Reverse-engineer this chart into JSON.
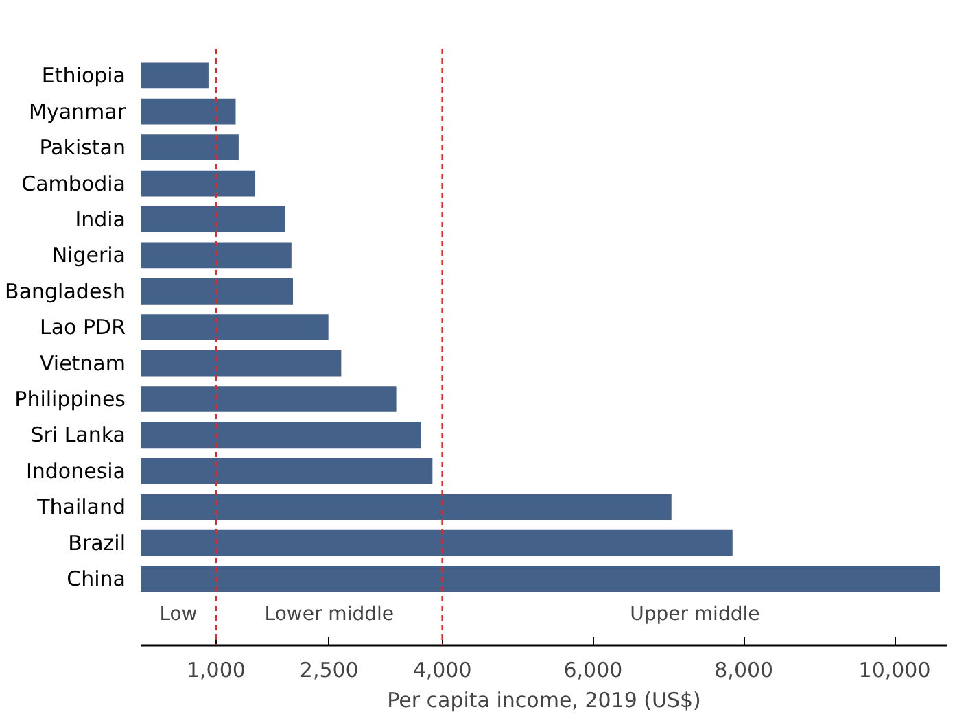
{
  "chart_data": {
    "type": "bar",
    "orientation": "horizontal",
    "categories": [
      "Ethiopia",
      "Myanmar",
      "Pakistan",
      "Cambodia",
      "India",
      "Nigeria",
      "Bangladesh",
      "Lao PDR",
      "Vietnam",
      "Philippines",
      "Sri Lanka",
      "Indonesia",
      "Thailand",
      "Brazil",
      "China"
    ],
    "values": [
      900,
      1260,
      1300,
      1520,
      1920,
      2000,
      2020,
      2490,
      2660,
      3390,
      3720,
      3870,
      7040,
      7850,
      10600
    ],
    "color": "#44618a",
    "xlabel": "Per capita income, 2019 (US$)",
    "xlim": [
      0,
      10700
    ],
    "xticks": [
      {
        "value": 1000,
        "label": "1,000"
      },
      {
        "value": 2500,
        "label": "2,500"
      },
      {
        "value": 4000,
        "label": "4,000"
      },
      {
        "value": 6000,
        "label": "6,000"
      },
      {
        "value": 8000,
        "label": "8,000"
      },
      {
        "value": 10000,
        "label": "10,000"
      }
    ],
    "ref_lines": [
      {
        "axis": "x",
        "value": 1000,
        "color": "#e8262b",
        "line_style": "dashed"
      },
      {
        "axis": "x",
        "value": 4000,
        "color": "#e8262b",
        "line_style": "dashed"
      }
    ],
    "annotations": [
      "Low",
      "Lower middle",
      "Upper middle"
    ],
    "grid": false
  }
}
